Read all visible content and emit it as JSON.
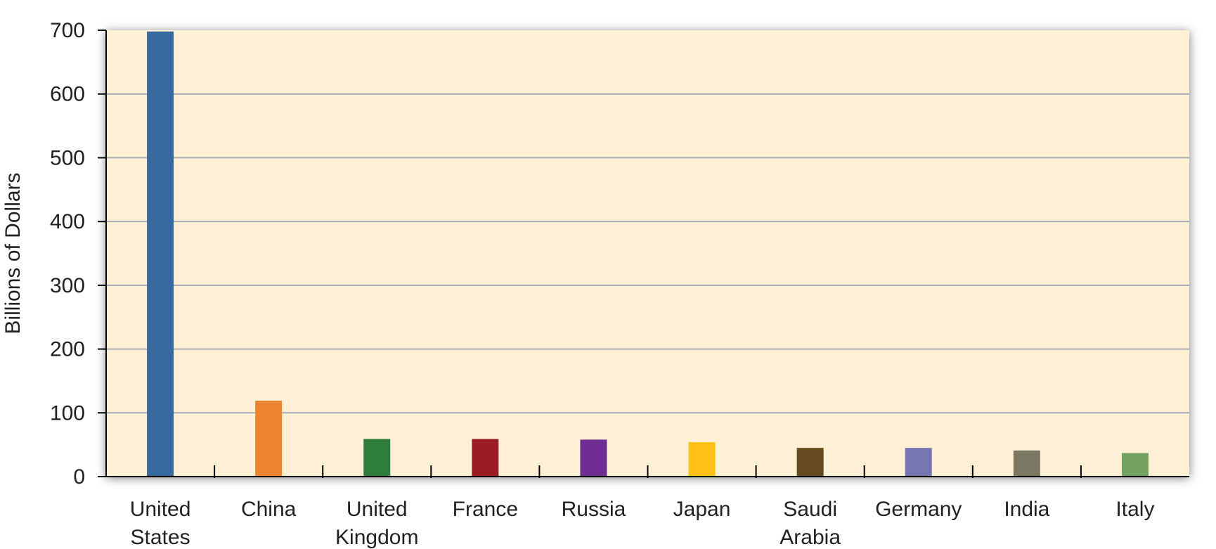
{
  "chart_data": {
    "type": "bar",
    "title": "",
    "xlabel": "",
    "ylabel": "Billions of Dollars",
    "ylim": [
      0,
      700
    ],
    "yticks": [
      0,
      100,
      200,
      300,
      400,
      500,
      600,
      700
    ],
    "grid": true,
    "legend": "none",
    "categories": [
      [
        "United",
        "States"
      ],
      [
        "China"
      ],
      [
        "United",
        "Kingdom"
      ],
      [
        "France"
      ],
      [
        "Russia"
      ],
      [
        "Japan"
      ],
      [
        "Saudi",
        "Arabia"
      ],
      [
        "Germany"
      ],
      [
        "India"
      ],
      [
        "Italy"
      ]
    ],
    "values": [
      698,
      119,
      59,
      59,
      58,
      54,
      45,
      45,
      41,
      37
    ],
    "colors": [
      "#376a9e",
      "#ec8432",
      "#2e7d3c",
      "#9b1c22",
      "#6e2e92",
      "#fdc215",
      "#664a20",
      "#7876b0",
      "#7a7862",
      "#73a162"
    ],
    "plot_background": "#fdf0d4",
    "grid_color": "#a8acb4"
  }
}
